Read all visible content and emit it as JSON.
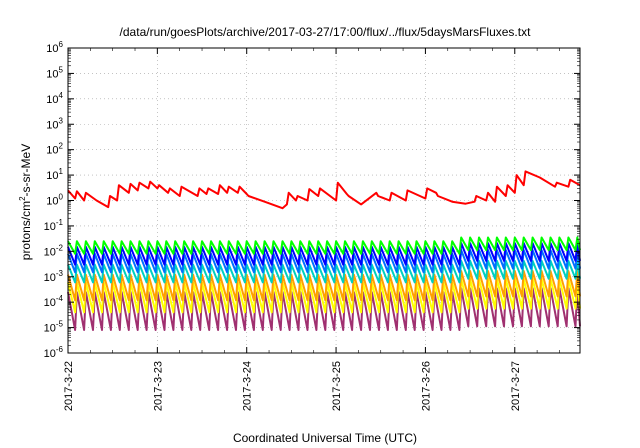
{
  "chart_data": {
    "type": "line",
    "title": "/data/run/goesPlots/archive/2017-03-27/17:00/flux/../flux/5daysMarsFluxes.txt",
    "xlabel": "Coordinated Universal Time (UTC)",
    "ylabel": {
      "pre": "protons/cm",
      "sup": "2",
      "post": "-s-sr-MeV"
    },
    "yscale": "log",
    "ylim": [
      1e-06,
      1000000.0
    ],
    "xlim": [
      0,
      5.73
    ],
    "grid": true,
    "legend": "none",
    "x_ticks": [
      {
        "x": 0,
        "label": "2017-3-22"
      },
      {
        "x": 1,
        "label": "2017-3-23"
      },
      {
        "x": 2,
        "label": "2017-3-24"
      },
      {
        "x": 3,
        "label": "2017-3-25"
      },
      {
        "x": 4,
        "label": "2017-3-26"
      },
      {
        "x": 5,
        "label": "2017-3-27"
      }
    ],
    "y_ticks": [
      {
        "exp": -6,
        "label": "10",
        "sup": "-6"
      },
      {
        "exp": -5,
        "label": "10",
        "sup": "-5"
      },
      {
        "exp": -4,
        "label": "10",
        "sup": "-4"
      },
      {
        "exp": -3,
        "label": "10",
        "sup": "-3"
      },
      {
        "exp": -2,
        "label": "10",
        "sup": "-2"
      },
      {
        "exp": -1,
        "label": "10",
        "sup": "-1"
      },
      {
        "exp": 0,
        "label": "10",
        "sup": "0"
      },
      {
        "exp": 1,
        "label": "10",
        "sup": "1"
      },
      {
        "exp": 2,
        "label": "10",
        "sup": "2"
      },
      {
        "exp": 3,
        "label": "10",
        "sup": "3"
      },
      {
        "exp": 4,
        "label": "10",
        "sup": "4"
      },
      {
        "exp": 5,
        "label": "10",
        "sup": "5"
      },
      {
        "exp": 6,
        "label": "10",
        "sup": "6"
      }
    ],
    "series": [
      {
        "color": "#ff0000",
        "x": [
          0,
          0.08,
          0.1,
          0.18,
          0.2,
          0.32,
          0.45,
          0.47,
          0.55,
          0.57,
          0.68,
          0.7,
          0.78,
          0.8,
          0.9,
          0.92,
          1.0,
          1.02,
          1.12,
          1.14,
          1.25,
          1.27,
          1.45,
          1.47,
          1.55,
          1.57,
          1.68,
          1.7,
          1.78,
          1.8,
          1.9,
          1.92,
          2.0,
          2.02,
          2.2,
          2.4,
          2.45,
          2.47,
          2.55,
          2.57,
          2.68,
          2.7,
          2.8,
          2.82,
          3.0,
          3.02,
          3.12,
          3.14,
          3.28,
          3.45,
          3.47,
          3.6,
          3.62,
          3.78,
          3.8,
          4.0,
          4.02,
          4.12,
          4.14,
          4.3,
          4.45,
          4.55,
          4.57,
          4.68,
          4.7,
          4.78,
          4.8,
          4.9,
          4.92,
          5.0,
          5.02,
          5.1,
          5.12,
          5.28,
          5.45,
          5.47,
          5.6,
          5.62,
          5.73
        ],
        "y": [
          2.5,
          1.2,
          2.3,
          1.0,
          2.0,
          1.0,
          0.55,
          1.5,
          1.0,
          4.0,
          2.0,
          4.5,
          2.5,
          5.0,
          3.0,
          5.5,
          3.0,
          4.0,
          2.0,
          3.0,
          1.5,
          3.5,
          1.5,
          3.0,
          1.8,
          3.0,
          1.8,
          4.0,
          2.0,
          3.5,
          2.0,
          3.5,
          1.8,
          1.5,
          0.9,
          0.5,
          0.7,
          2.0,
          1.0,
          1.5,
          1.0,
          2.8,
          1.5,
          3.0,
          1.0,
          5.0,
          1.8,
          1.5,
          0.7,
          2.0,
          1.5,
          1.0,
          2.0,
          1.0,
          2.5,
          1.2,
          3.0,
          2.0,
          1.5,
          0.9,
          0.75,
          0.9,
          1.5,
          1.0,
          2.0,
          0.9,
          3.5,
          1.5,
          4.0,
          2.0,
          10.0,
          4.0,
          14.0,
          8.0,
          3.5,
          5.0,
          3.5,
          6.5,
          4.0
        ]
      }
    ],
    "sawtooth_series": [
      {
        "color": "#00ff00",
        "peak": 0.025,
        "low": 0.008
      },
      {
        "color": "#0000ff",
        "peak": 0.015,
        "low": 0.003
      },
      {
        "color": "#0070ff",
        "peak": 0.008,
        "low": 0.0015
      },
      {
        "color": "#00d0c0",
        "peak": 0.003,
        "low": 0.0006
      },
      {
        "color": "#ffa000",
        "peak": 0.0012,
        "low": 0.00012
      },
      {
        "color": "#ffff00",
        "peak": 0.0006,
        "low": 4e-05
      },
      {
        "color": "#a03070",
        "peak": 0.00025,
        "low": 8e-06
      }
    ],
    "sawtooth_period_days": 0.1,
    "sawtooth_elevated_from_day": 4.4
  }
}
